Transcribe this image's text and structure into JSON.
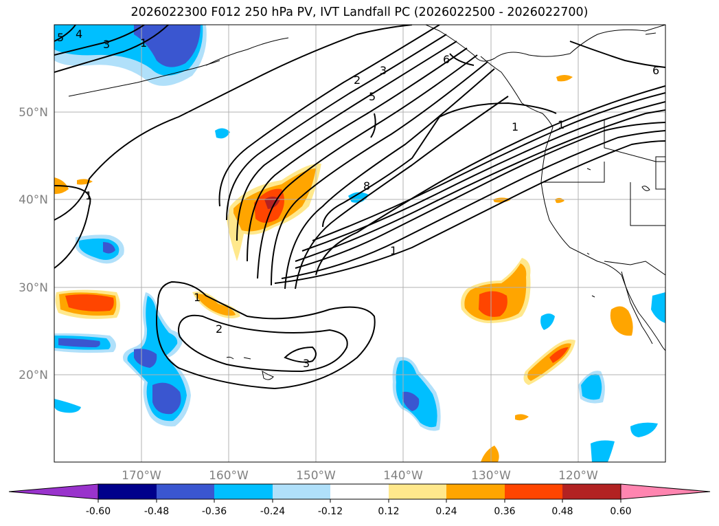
{
  "title": "2026022300 F012 250 hPa PV, IVT Landfall PC (2026022500 - 2026022700)",
  "map": {
    "lat_labels": [
      "50°N",
      "40°N",
      "30°N",
      "20°N"
    ],
    "lon_labels": [
      "170°W",
      "160°W",
      "150°W",
      "140°W",
      "130°W",
      "120°W"
    ],
    "lon_range": [
      -180,
      -110
    ],
    "lat_range": [
      10,
      60
    ],
    "contour_labels": [
      "5",
      "4",
      "3",
      "1",
      "2",
      "3",
      "5",
      "8",
      "1",
      "6",
      "6",
      "1",
      "1",
      "1",
      "2",
      "3",
      "1"
    ]
  },
  "colorbar": {
    "ticks": [
      "-0.60",
      "-0.48",
      "-0.36",
      "-0.24",
      "-0.12",
      "0.12",
      "0.24",
      "0.36",
      "0.48",
      "0.60"
    ],
    "colors": {
      "under": "#9933cc",
      "bins": [
        "#00008b",
        "#3a56d0",
        "#00bfff",
        "#b0e0fa",
        "#ffffff",
        "#ffe88c",
        "#ffa500",
        "#ff4500",
        "#b22222"
      ],
      "over": "#ff85b0"
    }
  },
  "colors": {
    "grid": "#b0b0b0",
    "contour": "#000000",
    "coast": "#000000"
  }
}
